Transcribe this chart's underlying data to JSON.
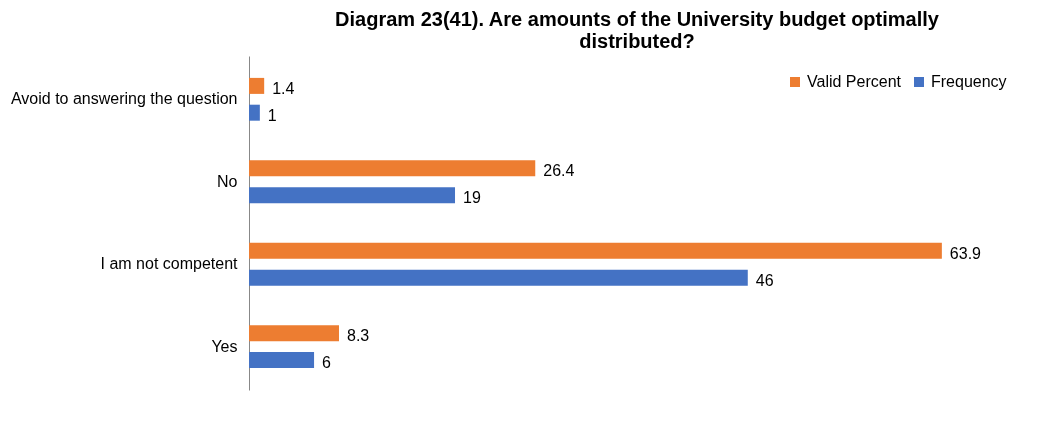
{
  "chart_data": {
    "type": "bar",
    "orientation": "horizontal",
    "title": "Diagram 23(41). Are amounts of the University budget optimally distributed?",
    "categories": [
      "Avoid to answering the question",
      "No",
      "I am not competent",
      "Yes"
    ],
    "series": [
      {
        "name": "Valid Percent",
        "color": "#ed7d31",
        "values": [
          1.4,
          26.4,
          63.9,
          8.3
        ]
      },
      {
        "name": "Frequency",
        "color": "#4472c4",
        "values": [
          1,
          19,
          46,
          6
        ]
      }
    ],
    "data_labels": true,
    "legend": "top right",
    "grid": false
  }
}
